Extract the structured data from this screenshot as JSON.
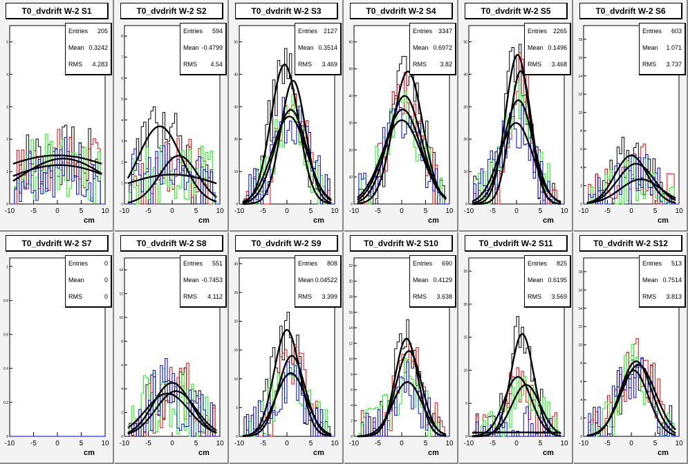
{
  "chart_data": [
    {
      "type": "histogram",
      "title": "T0_dvdrift W-2 S1",
      "xunit": "cm",
      "xlim": [
        -10,
        10
      ],
      "ylim": [
        0,
        5.5
      ],
      "yticks": [
        0,
        1,
        2,
        3,
        4,
        5
      ],
      "xticks": [
        -10,
        -5,
        0,
        5,
        10
      ],
      "stats": {
        "Entries": "205",
        "Mean": "0.3242",
        "RMS": "4.283"
      },
      "fits": [
        {
          "amp": 1.5,
          "mean": 0,
          "sigma": 15
        },
        {
          "amp": 1.4,
          "mean": 1.2,
          "sigma": 9
        },
        {
          "amp": 1.2,
          "mean": 0.5,
          "sigma": 12
        }
      ],
      "noise": 1.0
    },
    {
      "type": "histogram",
      "title": "T0_dvdrift W-2 S2",
      "xunit": "cm",
      "xlim": [
        -10,
        10
      ],
      "ylim": [
        0,
        8.5
      ],
      "yticks": [
        0,
        1,
        2,
        3,
        4,
        5,
        6,
        7,
        8
      ],
      "xticks": [
        -10,
        -5,
        0,
        5,
        10
      ],
      "stats": {
        "Entries": "594",
        "Mean": "-0.4799",
        "RMS": "4.54"
      },
      "fits": [
        {
          "amp": 3.7,
          "mean": -2.6,
          "sigma": 4.5
        },
        {
          "amp": 2.3,
          "mean": 1.4,
          "sigma": 4
        },
        {
          "amp": 1.4,
          "mean": 0,
          "sigma": 11
        }
      ],
      "noise": 1.6
    },
    {
      "type": "histogram",
      "title": "T0_dvdrift W-2 S3",
      "xunit": "cm",
      "xlim": [
        -10,
        10
      ],
      "ylim": [
        0,
        55
      ],
      "yticks": [
        0,
        10,
        20,
        30,
        40,
        50
      ],
      "xticks": [
        -10,
        -5,
        0,
        5,
        10
      ],
      "stats": {
        "Entries": "2127",
        "Mean": "0.3514",
        "RMS": "3.469"
      },
      "fits": [
        {
          "amp": 43,
          "mean": -0.5,
          "sigma": 2.9
        },
        {
          "amp": 38,
          "mean": 1.3,
          "sigma": 2.6
        },
        {
          "amp": 29,
          "mean": 0.8,
          "sigma": 3.3
        },
        {
          "amp": 27,
          "mean": 0.5,
          "sigma": 3.6
        }
      ],
      "noise": 9
    },
    {
      "type": "histogram",
      "title": "T0_dvdrift W-2 S4",
      "xunit": "cm",
      "xlim": [
        -10,
        10
      ],
      "ylim": [
        0,
        66
      ],
      "yticks": [
        0,
        10,
        20,
        30,
        40,
        50,
        60
      ],
      "xticks": [
        -10,
        -5,
        0,
        5,
        10
      ],
      "stats": {
        "Entries": "3347",
        "Mean": "0.6972",
        "RMS": "3.82"
      },
      "fits": [
        {
          "amp": 49,
          "mean": 1.3,
          "sigma": 3.1
        },
        {
          "amp": 40,
          "mean": 0.6,
          "sigma": 3.5
        },
        {
          "amp": 35,
          "mean": 0.2,
          "sigma": 3.8
        },
        {
          "amp": 31,
          "mean": 0.0,
          "sigma": 4.1
        }
      ],
      "noise": 10
    },
    {
      "type": "histogram",
      "title": "T0_dvdrift W-2 S5",
      "xunit": "cm",
      "xlim": [
        -10,
        10
      ],
      "ylim": [
        0,
        55
      ],
      "yticks": [
        0,
        10,
        20,
        30,
        40,
        50
      ],
      "xticks": [
        -10,
        -5,
        0,
        5,
        10
      ],
      "stats": {
        "Entries": "2265",
        "Mean": "0.1496",
        "RMS": "3.468"
      },
      "fits": [
        {
          "amp": 46,
          "mean": 0.2,
          "sigma": 2.5
        },
        {
          "amp": 41,
          "mean": 0.9,
          "sigma": 2.3
        },
        {
          "amp": 32,
          "mean": 0.4,
          "sigma": 3.1
        },
        {
          "amp": 25,
          "mean": -0.1,
          "sigma": 3.5
        }
      ],
      "noise": 9
    },
    {
      "type": "histogram",
      "title": "T0_dvdrift W-2 S6",
      "xunit": "cm",
      "xlim": [
        -10,
        10
      ],
      "ylim": [
        0,
        19.5
      ],
      "yticks": [
        0,
        2,
        4,
        6,
        8,
        10,
        12,
        14,
        16,
        18
      ],
      "xticks": [
        -10,
        -5,
        0,
        5,
        10
      ],
      "stats": {
        "Entries": "603",
        "Mean": "1.071",
        "RMS": "3.737"
      },
      "fits": [
        {
          "amp": 5.3,
          "mean": 0,
          "sigma": 3.4
        },
        {
          "amp": 4.4,
          "mean": 1,
          "sigma": 3.8
        },
        {
          "amp": 2.7,
          "mean": 2,
          "sigma": 4.3
        }
      ],
      "noise": 3
    },
    {
      "type": "histogram",
      "title": "T0_dvdrift W-2 S7",
      "xunit": "cm",
      "xlim": [
        -10,
        10
      ],
      "ylim": [
        0,
        1.05
      ],
      "yticks": [
        0,
        0.2,
        0.4,
        0.6,
        0.8,
        1
      ],
      "xticks": [
        -10,
        -5,
        0,
        5,
        10
      ],
      "stats": {
        "Entries": "0",
        "Mean": "0",
        "RMS": "0"
      },
      "fits": [],
      "noise": 0
    },
    {
      "type": "histogram",
      "title": "T0_dvdrift W-2 S8",
      "xunit": "cm",
      "xlim": [
        -10,
        10
      ],
      "ylim": [
        0,
        15
      ],
      "yticks": [
        0,
        2,
        4,
        6,
        8,
        10,
        12,
        14
      ],
      "xticks": [
        -10,
        -5,
        0,
        5,
        10
      ],
      "stats": {
        "Entries": "551",
        "Mean": "-0.7453",
        "RMS": "4.112"
      },
      "fits": [
        {
          "amp": 4.5,
          "mean": 0,
          "sigma": 4
        },
        {
          "amp": 3.8,
          "mean": 0.8,
          "sigma": 4.2
        },
        {
          "amp": 3.6,
          "mean": -1,
          "sigma": 4.6
        }
      ],
      "noise": 3
    },
    {
      "type": "histogram",
      "title": "T0_dvdrift W-2 S9",
      "xunit": "cm",
      "xlim": [
        -10,
        10
      ],
      "ylim": [
        0,
        31
      ],
      "yticks": [
        0,
        5,
        10,
        15,
        20,
        25,
        30
      ],
      "xticks": [
        -10,
        -5,
        0,
        5,
        10
      ],
      "stats": {
        "Entries": "808",
        "Mean": "0.04522",
        "RMS": "3.399"
      },
      "fits": [
        {
          "amp": 18.5,
          "mean": 0,
          "sigma": 2.7
        },
        {
          "amp": 14,
          "mean": 1,
          "sigma": 2.8
        },
        {
          "amp": 11,
          "mean": 0.8,
          "sigma": 3.2
        }
      ],
      "noise": 5
    },
    {
      "type": "histogram",
      "title": "T0_dvdrift W-2 S10",
      "xunit": "cm",
      "xlim": [
        -10,
        10
      ],
      "ylim": [
        0,
        23
      ],
      "yticks": [
        0,
        2,
        4,
        6,
        8,
        10,
        12,
        14,
        16,
        18,
        20,
        22
      ],
      "xticks": [
        -10,
        -5,
        0,
        5,
        10
      ],
      "stats": {
        "Entries": "690",
        "Mean": "0.4129",
        "RMS": "3.638"
      },
      "fits": [
        {
          "amp": 12.6,
          "mean": 1,
          "sigma": 2.4
        },
        {
          "amp": 11,
          "mean": 1.5,
          "sigma": 2.7
        },
        {
          "amp": 7,
          "mean": 1.2,
          "sigma": 3.1
        }
      ],
      "noise": 3.5
    },
    {
      "type": "histogram",
      "title": "T0_dvdrift W-2 S11",
      "xunit": "cm",
      "xlim": [
        -10,
        10
      ],
      "ylim": [
        0,
        27
      ],
      "yticks": [
        0,
        5,
        10,
        15,
        20,
        25
      ],
      "xticks": [
        -10,
        -5,
        0,
        5,
        10
      ],
      "stats": {
        "Entries": "825",
        "Mean": "0.6195",
        "RMS": "3.569"
      },
      "fits": [
        {
          "amp": 15.5,
          "mean": 1.2,
          "sigma": 2.4
        },
        {
          "amp": 9,
          "mean": 0.3,
          "sigma": 2.9
        },
        {
          "amp": 7.8,
          "mean": 2,
          "sigma": 3
        },
        {
          "amp": 0.6,
          "mean": 0,
          "sigma": 20
        }
      ],
      "noise": 4
    },
    {
      "type": "histogram",
      "title": "T0_dvdrift W-2 S12",
      "xunit": "cm",
      "xlim": [
        -10,
        10
      ],
      "ylim": [
        0,
        19.5
      ],
      "yticks": [
        0,
        2,
        4,
        6,
        8,
        10,
        12,
        14,
        16,
        18
      ],
      "xticks": [
        -10,
        -5,
        0,
        5,
        10
      ],
      "stats": {
        "Entries": "513",
        "Mean": "0.7514",
        "RMS": "3.813"
      },
      "fits": [
        {
          "amp": 8.2,
          "mean": 1,
          "sigma": 3.3
        },
        {
          "amp": 7.8,
          "mean": 1.5,
          "sigma": 3.6
        },
        {
          "amp": 7.2,
          "mean": 0.5,
          "sigma": 3.1
        }
      ],
      "noise": 3
    }
  ],
  "colors": {
    "fit": "#000000",
    "hist_series": [
      "#000000",
      "#ff0000",
      "#00ff00",
      "#0000ff"
    ],
    "pad_bg": "#f3f3f3",
    "frame_bg": "#ffffff"
  }
}
